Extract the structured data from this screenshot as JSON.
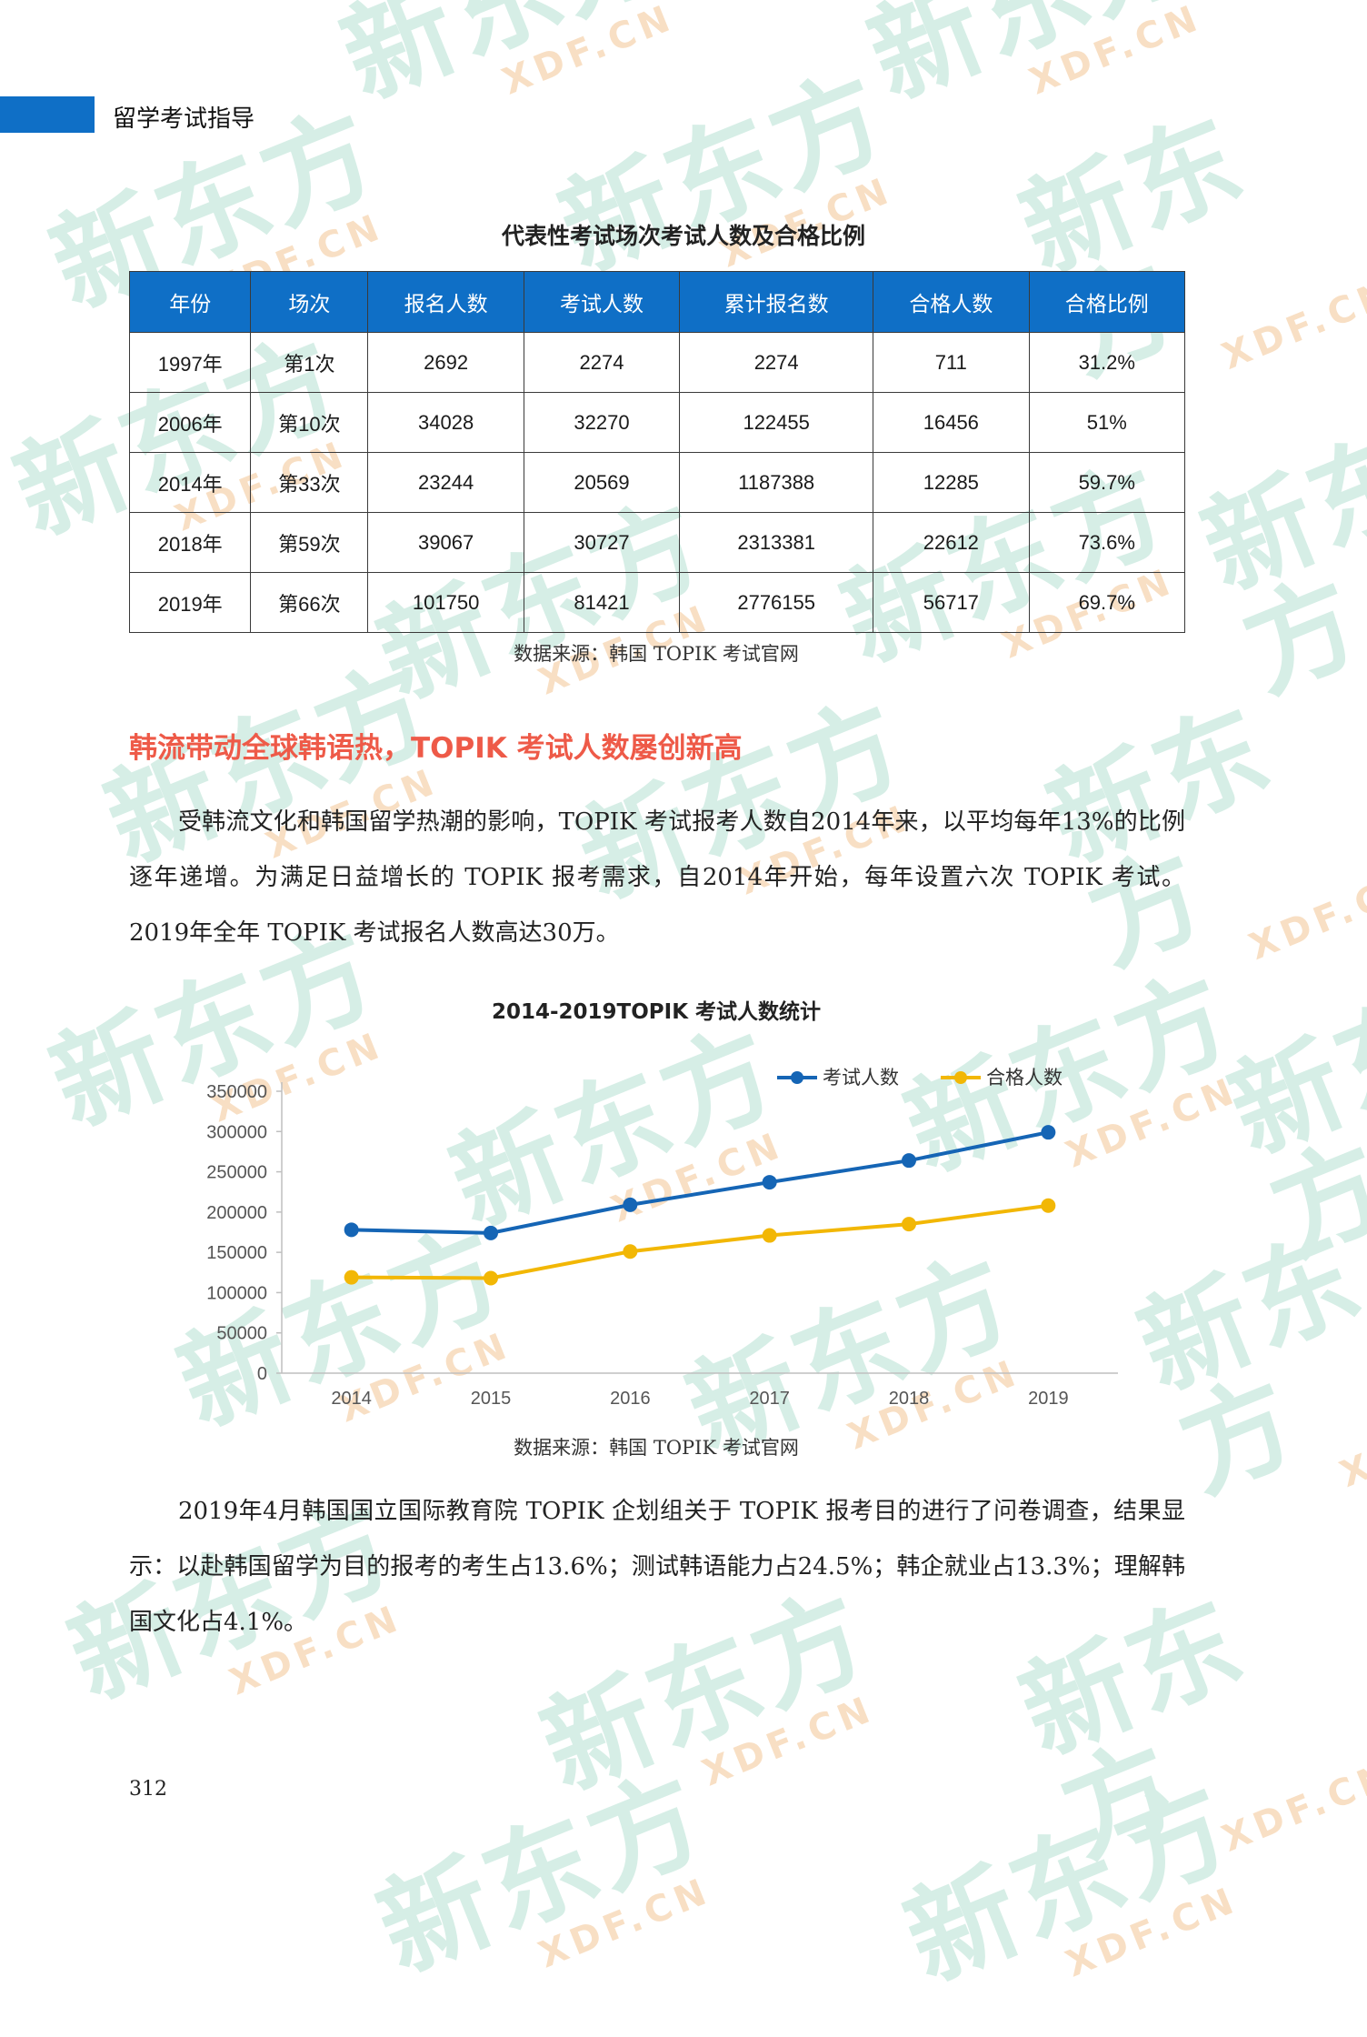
{
  "header": {
    "section": "留学考试指导"
  },
  "exam_table": {
    "title": "代表性考试场次考试人数及合格比例",
    "columns": [
      "年份",
      "场次",
      "报名人数",
      "考试人数",
      "累计报名数",
      "合格人数",
      "合格比例"
    ],
    "rows": [
      [
        "1997年",
        "第1次",
        "2692",
        "2274",
        "2274",
        "711",
        "31.2%"
      ],
      [
        "2006年",
        "第10次",
        "34028",
        "32270",
        "122455",
        "16456",
        "51%"
      ],
      [
        "2014年",
        "第33次",
        "23244",
        "20569",
        "1187388",
        "12285",
        "59.7%"
      ],
      [
        "2018年",
        "第59次",
        "39067",
        "30727",
        "2313381",
        "22612",
        "73.6%"
      ],
      [
        "2019年",
        "第66次",
        "101750",
        "81421",
        "2776155",
        "56717",
        "69.7%"
      ]
    ],
    "source": "数据来源：韩国 TOPIK 考试官网"
  },
  "section": {
    "heading": "韩流带动全球韩语热，TOPIK 考试人数屡创新高"
  },
  "paragraph1": "受韩流文化和韩国留学热潮的影响，TOPIK 考试报考人数自2014年来，以平均每年13%的比例逐年递增。为满足日益增长的 TOPIK 报考需求，自2014年开始，每年设置六次 TOPIK 考试。2019年全年 TOPIK 考试报名人数高达30万。",
  "chart_source": "数据来源：韩国 TOPIK 考试官网",
  "paragraph2": "2019年4月韩国国立国际教育院 TOPIK 企划组关于 TOPIK 报考目的进行了问卷调查，结果显示：以赴韩国留学为目的报考的考生占13.6%；测试韩语能力占24.5%；韩企就业占13.3%；理解韩国文化占4.1%。",
  "page_number": "312",
  "watermark": {
    "logo": "新东方",
    "url": "XDF.CN"
  },
  "chart_data": {
    "type": "line",
    "title": "2014-2019TOPIK 考试人数统计",
    "categories": [
      "2014",
      "2015",
      "2016",
      "2017",
      "2018",
      "2019"
    ],
    "series": [
      {
        "name": "考试人数",
        "color": "#1565b5",
        "values": [
          178000,
          174000,
          209000,
          237000,
          264000,
          299000
        ]
      },
      {
        "name": "合格人数",
        "color": "#f2b705",
        "values": [
          119000,
          118000,
          151000,
          171000,
          185000,
          208000
        ]
      }
    ],
    "yticks": [
      0,
      50000,
      100000,
      150000,
      200000,
      250000,
      300000,
      350000
    ],
    "ylim": [
      0,
      350000
    ],
    "legend": "top-right",
    "grid": false
  }
}
